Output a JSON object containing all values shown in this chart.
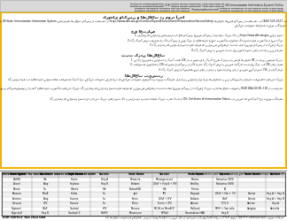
{
  "header_text": "آموزش به والدین/مراقبان (CIS) گواهی وضعیت ایمن‌سازی | ثبت نام کنید تا (IIS Immunization Information System) Online",
  "header_text2": "اطلاعات ایمن‌سازی فرزندان خود را ببینید. (Immunizationrecord) کارنامه ایمن‌سازی آن را دانلود کرده و چاپ کنید.",
  "header_bg": "#d9d9d9",
  "header_border": "#999999",
  "yellow_border": "#f0b400",
  "s1_title": "داروهای واکسن و اطلاعات در مورد آنها",
  "s1_text1": "اطلاعات واکسن از IIS State Immunization Information System در دسترس است. اطلاعات ایمنی واکسن را می‌توانید در https://www.doh.wa.gov/CommunityandEnvironment/Immunization/VaccineSafetyandEffectiveness بیابید.",
  "s1_text2": "اگر سوالی دارید با محکمه بهداشت محلی خود تماس بگیرید یا ایمیل بفرستید.",
  "s2_title": "حق اعتراض",
  "s2_items": [
    "1. والدین یا مراقبان می‌توانند به جای واکسن، آموزش واکسن را انتخاب کنند. این آموزش در https://www.doh.wa.gov/YouandYourFamily/Immunization/GetYourChildImmunized/ExemptiontoSchoolImmunizationRequirements موجود است.",
    "2. اگر کودک شما یک بیماری دارد که واکسن را منع کند، از یک ارائه‌دهنده خدمات پزشکی بخواهید که استثنای پزشکی را در این فرم امضا کند.",
    "3. اگر والدین یا مراقبان استثنای دینی یا فلسفی می‌خواهند، ابتدا باید آموزش واکسن را تکمیل کنند.",
    "4. اگر کودک شما در مدرسه یا مهدکودک ثبت نام نشده است، نیاز به این فرم ندارید. اما وقتی ثبت‌نام کردند، مدرسه یا مهدکودک این فرم را طلب خواهد کرد."
  ],
  "s3_title": "ثبت کردن اطلاعات",
  "s3_items": [
    "1. مراکز آموزشی و مراقبت از کودک باید CIS را Certificate of Immunization Status با سوابق هر کودک حفظ کنند و هر ساله اطلاعات IIS State Immunization Information System را به روز رسانی کنند.",
    "2. بایستی نسخه‌ای از CIS Certificate of Immunization Status یا سوابق واکسن را نگه دارید. اگر کودک شما در مدرسه یا مهدکودک متفاوتی ثبت‌نام کند، به CIS نیاز دارید.",
    "3. اگر کودک شما واکسن‌های مورد نیاز را ندارد و استثنا هم ندارد، ممکن است مدرسه یا مهدکودک CIS را بازگرداند یا اجازه ورود به ساختمان را ندهد."
  ],
  "s4_title": "اطلاعات بیشتر",
  "s4_text": "اگر سوال دارید با ارائه‌دهنده مراقبت‌های بهداشتی کودک خود، محکمه بهداشت محلی خود، یا محکمه بهداشت واشنگتن (DOH) تماس بگیرید. همچنین می‌توانید والدین یا مراقبان با عضویت به یک گروه محلی مانند واکسیناسیون، مشاوره‌ای بگیرید.",
  "s4_text2": "والدین و مراقبان حق دارند اطلاعاتی در مورد واکسن‌ها و خطرات بیماری‌هایی که پیشگیری می‌شود، دریافت کنند.",
  "s5_text": "قانون اجازه می‌دهد والدین یا مراقبان برای استثنا درخواست دهند. والدین یا مراقبان می‌توانند واکسن‌های مورد نیاز را کامل کنند، یا والدین می‌توانند سند واکسیناسیون را از یک ارائه‌دهنده پزشکی دریافت کنند.",
  "s5_text2": "اگر والدین یا مراقبان استثنای دینی یا فلسفی می‌خواهند، آن‌ها ابتدا باید آموزش واکسن را تکمیل کنند. اگر استثنای پزشکی می‌خواهند، یک ارائه‌دهنده پزشکی باید تایید کند که واکسن برای کودک منع پزشکی دارد.",
  "s5_text3": "اگر والدین یا مراقبان استثنا دریافت کنند، نیاز است که در سال بعد دوباره تایید کنند. والدین می‌توانند استثنا را لغو کنند با ارائه مدارک واکسیناسیون جدید. برای اطلاعات بیشتر RCW 28A.210.80-.130 را ببینید. برای کپی از CIS، Certificate of Immunization Status، با مدرسه یا مهدکودک خود تماس بگیرید.",
  "ref_header": "Reference guide for vaccine trade names in alphabetical order",
  "ref_url": "For updated list, visit https://www.cdc.gov/vaccines/terms/vacc-abbrev.html",
  "ref_cols": [
    "Trade Name",
    "Vaccine",
    "Trade Name",
    "Vaccine",
    "Trade Name",
    "Vaccine",
    "Trade Name",
    "Vaccine",
    "Trade Name",
    "Vaccine"
  ],
  "ref_rows": [
    [
      "ActHIB",
      "Hib",
      "Havrix",
      "Hep A",
      "Menactra",
      "Meningococcal",
      "Rotarix",
      "Rotavirus (RV1)",
      "",
      ""
    ],
    [
      "Adacel",
      "Tdap",
      "Heplisav",
      "Hep B",
      "Pediarix",
      "DTaP + Hep B + IPV",
      "RotaTeq",
      "Rotavirus (RV5)",
      "",
      ""
    ],
    [
      "Afluria",
      "Flu",
      "Hiberix",
      "Hib",
      "PedvaxHIB",
      "Hib",
      "Tenivac",
      "Td",
      "",
      ""
    ],
    [
      "Bexsero",
      "MenB",
      "Infafix",
      "Flu",
      "Ipol",
      "IPV",
      "Proquad",
      "DTaP + Hib + IPV",
      "Twinrix",
      "Hep A + Hep B"
    ],
    [
      "Boostrix",
      "Tdap",
      "Fluzone",
      "Flu",
      "Kinrix",
      "DTaP + IPV",
      "Pediarix",
      "DTaP",
      "Twinrix",
      "Hep A + Hep B"
    ],
    [
      "Cervarix",
      "HPV",
      "Fluzone",
      "Flu",
      "Kinrix",
      "Kinrix + IPV",
      "Varivax",
      "PCV 9",
      "Varivax",
      "Hep A"
    ],
    [
      "Daptacel",
      "DTaP",
      "Gardasil",
      "HPV",
      "Menveo",
      "MCV4 or MenACYI",
      "ProQuad",
      "MMR + Varicella",
      "Vaxigrip",
      "Varicella"
    ],
    [
      "Engerix-B",
      "Hep B",
      "Gardasil 9",
      "9vHPV",
      "Menomune",
      "MPSV4",
      "Recombivax HBB",
      "Hep B",
      "",
      ""
    ]
  ],
  "footer_left": "DOH 348-013  Rev 2022 Dari",
  "footer_right": "اگر اطلاعات بیشتری می‌خواهید، ضرورت داریم اطلاعات در فرمت قابل دسترس برای شما ارائه دهیم. با (711) شماره TDD/TTY: 1-800-525-0127 تماس بگیرید."
}
